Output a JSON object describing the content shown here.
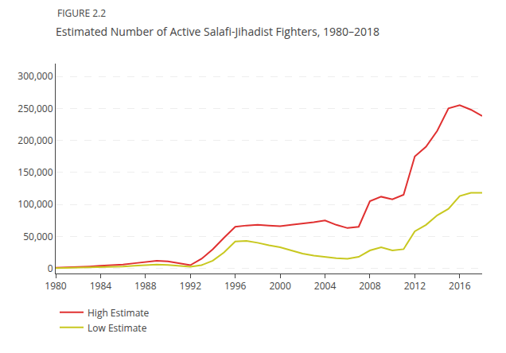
{
  "chart_data": {
    "type": "line",
    "title": "Estimated Number of Active Salafi-Jihadist Fighters, 1980–2018",
    "annotations": [
      "FIGURE 2.2"
    ],
    "x": [
      1980,
      1981,
      1982,
      1983,
      1984,
      1985,
      1986,
      1987,
      1988,
      1989,
      1990,
      1991,
      1992,
      1993,
      1994,
      1995,
      1996,
      1997,
      1998,
      1999,
      2000,
      2001,
      2002,
      2003,
      2004,
      2005,
      2006,
      2007,
      2008,
      2009,
      2010,
      2011,
      2012,
      2013,
      2014,
      2015,
      2016,
      2017,
      2018
    ],
    "series": [
      {
        "name": "High Estimate",
        "color": "#e03030",
        "values": [
          1000,
          1500,
          2000,
          3000,
          4000,
          5000,
          6000,
          8000,
          10000,
          12000,
          11000,
          8000,
          5000,
          15000,
          30000,
          48000,
          65000,
          67000,
          68000,
          67000,
          66000,
          68000,
          70000,
          72000,
          75000,
          68000,
          63000,
          65000,
          105000,
          112000,
          108000,
          115000,
          175000,
          190000,
          215000,
          250000,
          255000,
          248000,
          238000
        ]
      },
      {
        "name": "Low Estimate",
        "color": "#c8c820",
        "values": [
          500,
          800,
          1000,
          1500,
          2000,
          2500,
          3000,
          4000,
          5000,
          6000,
          5500,
          4000,
          2500,
          5000,
          12000,
          25000,
          42000,
          43000,
          40000,
          36000,
          33000,
          28000,
          23000,
          20000,
          18000,
          16000,
          15000,
          18000,
          28000,
          33000,
          28000,
          30000,
          58000,
          68000,
          83000,
          93000,
          113000,
          118000,
          118000
        ]
      }
    ],
    "xlim": [
      1980,
      2018
    ],
    "xticks": [
      1980,
      1984,
      1988,
      1992,
      1996,
      2000,
      2004,
      2008,
      2012,
      2016
    ],
    "ylim": [
      -8000,
      320000
    ],
    "yticks": [
      0,
      {
        "value": 50000,
        "label": "50,000"
      },
      {
        "value": 100000,
        "label": "100,000"
      },
      {
        "value": 150000,
        "label": "150,000"
      },
      {
        "value": 200000,
        "label": "200,000"
      },
      {
        "value": 250000,
        "label": "250,000"
      },
      {
        "value": 300000,
        "label": "300,000"
      }
    ],
    "grid": "y",
    "legend": "bottom"
  }
}
